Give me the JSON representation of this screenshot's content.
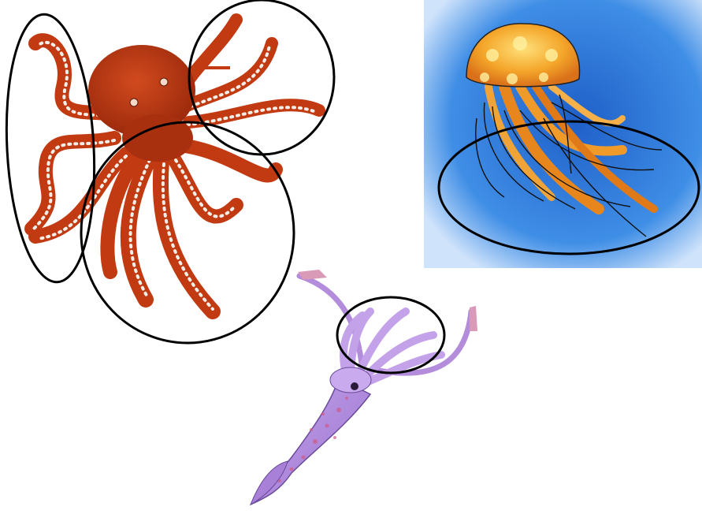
{
  "scene": {
    "background": "#ffffff",
    "figures": [
      {
        "name": "octopus",
        "body_color": "#c23a12",
        "sucker_color": "#f2eee8"
      },
      {
        "name": "jellyfish",
        "bell_color": "#f0a020",
        "water_color": "#3a86e0"
      },
      {
        "name": "squid",
        "body_color": "#b48cdc",
        "spot_color": "#d05a8a"
      }
    ],
    "outline_color": "#000000"
  }
}
